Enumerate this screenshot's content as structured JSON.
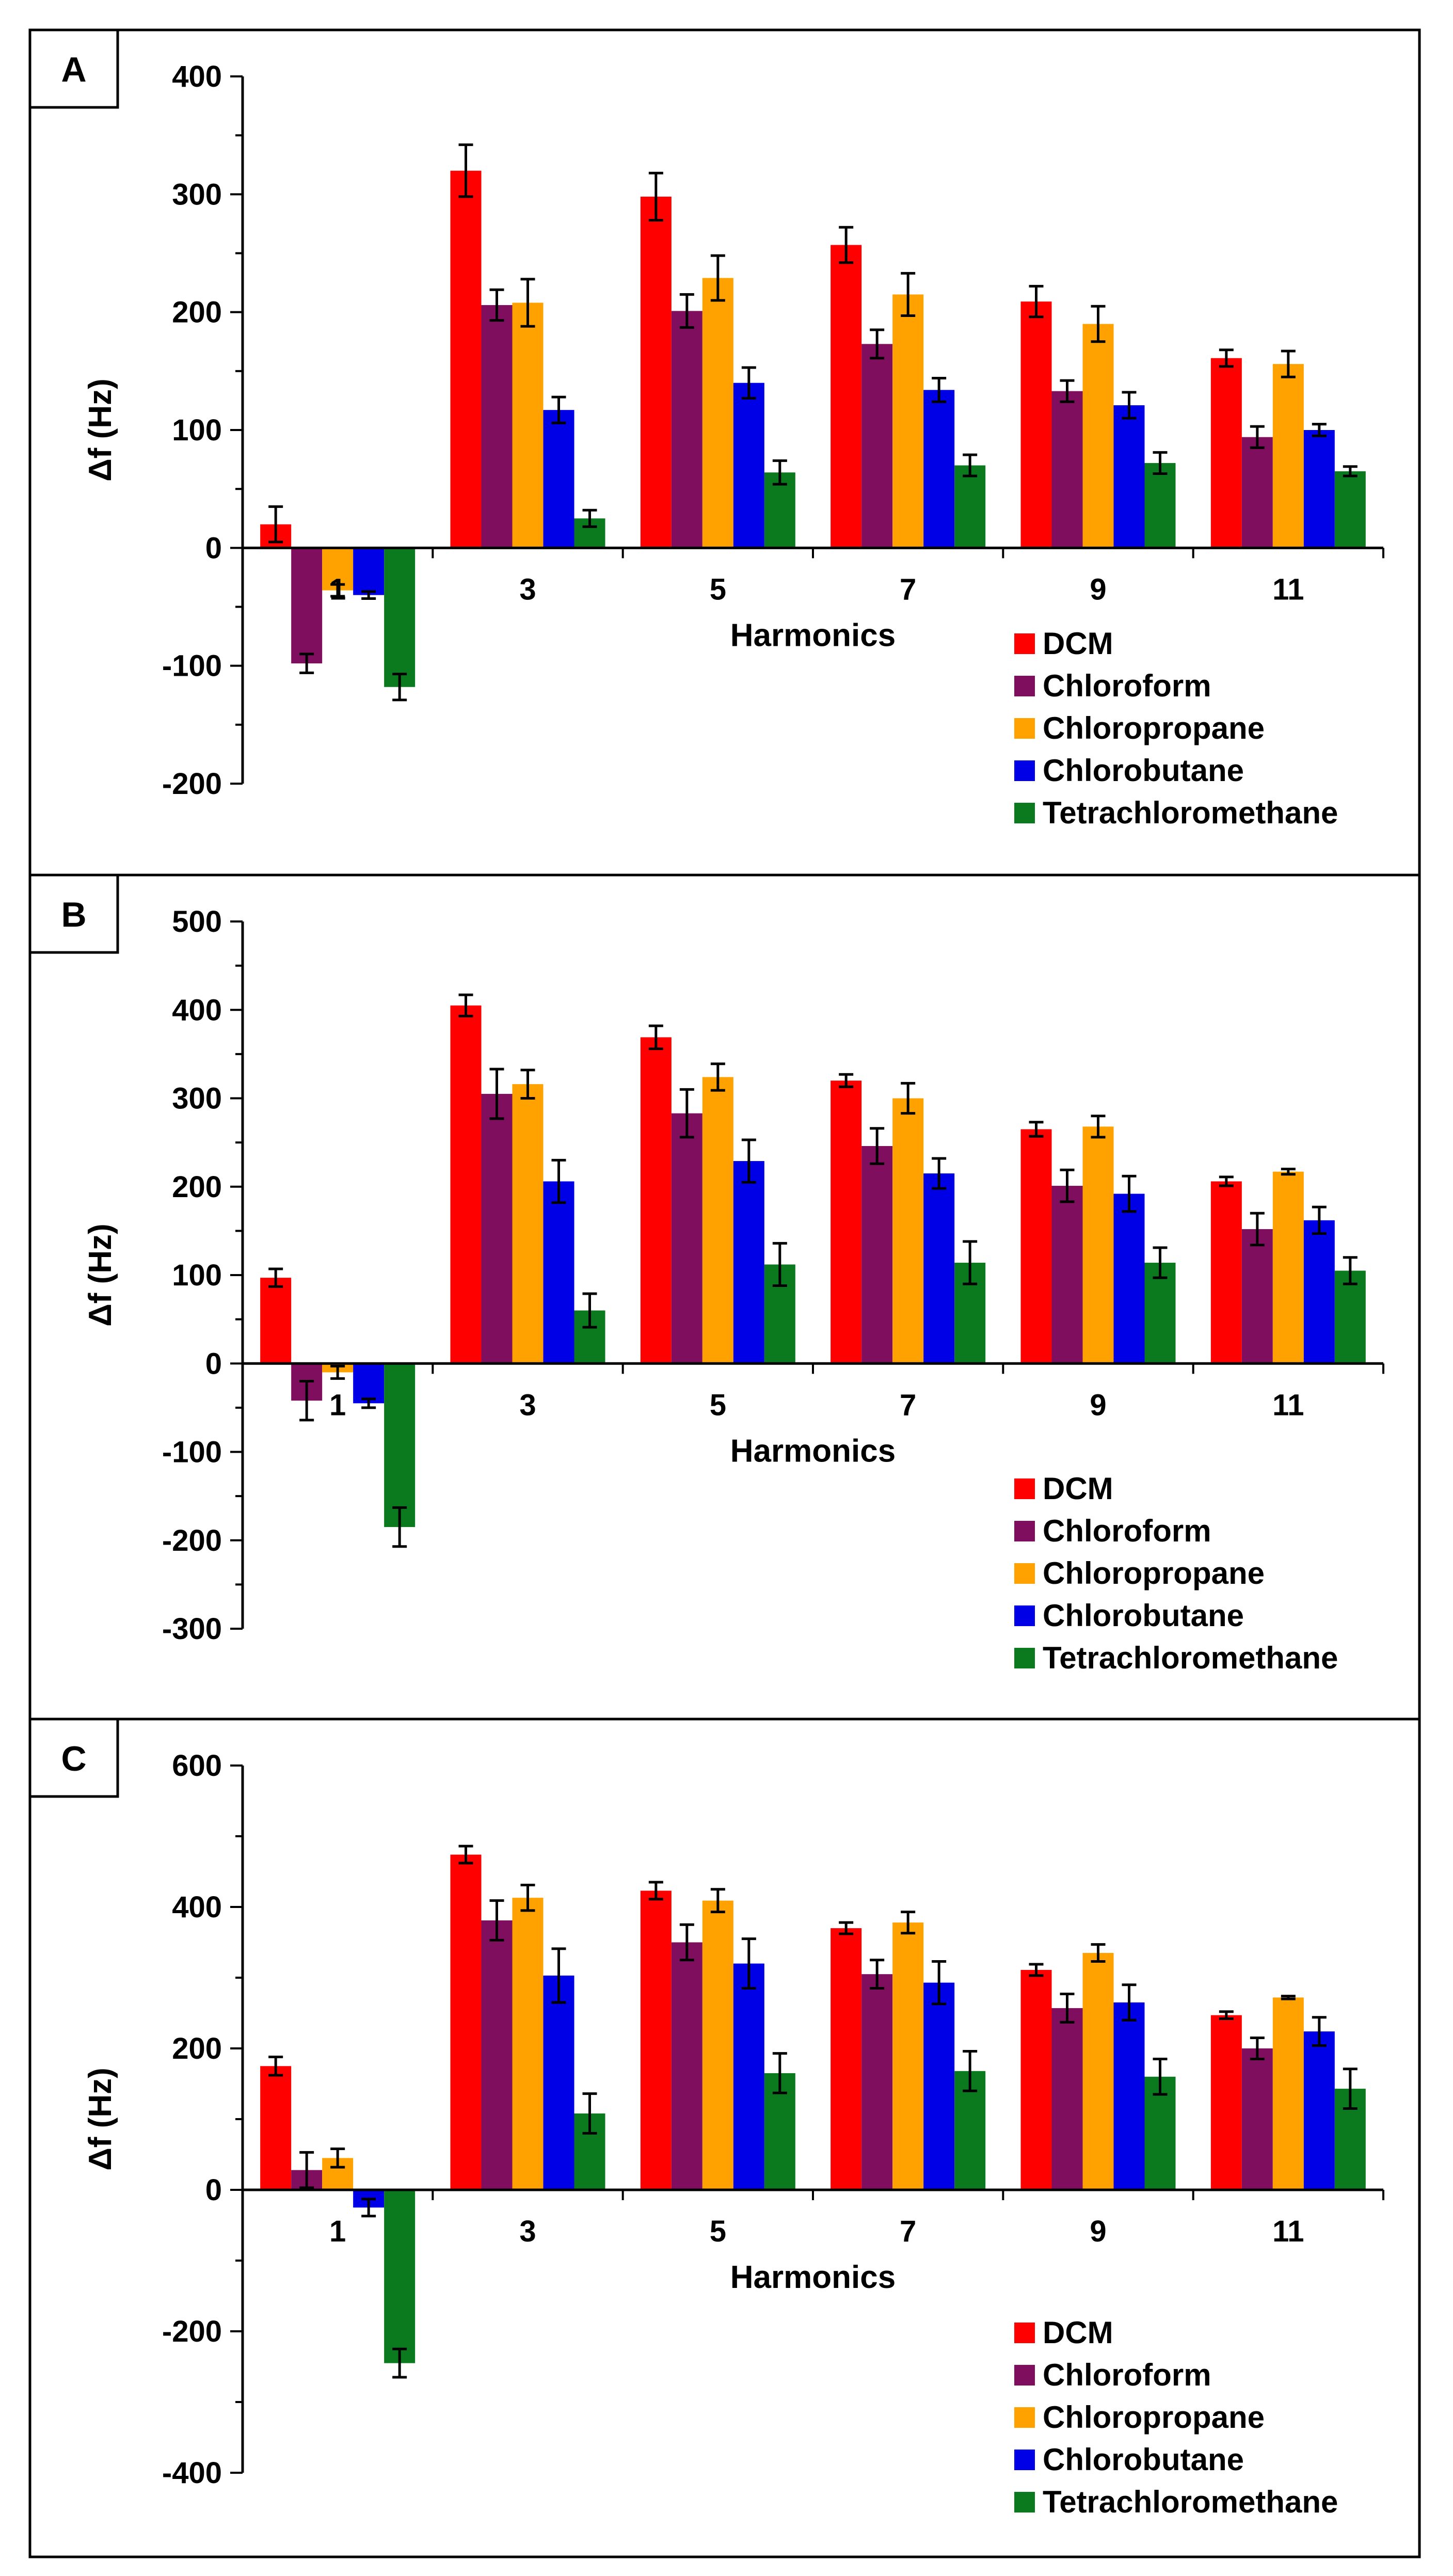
{
  "figure": {
    "panel_count": 3
  },
  "chart_data": [
    {
      "type": "bar",
      "panel_label": "A",
      "xlabel": "Harmonics",
      "ylabel": "Δf (Hz)",
      "ylim": [
        -200,
        400
      ],
      "y_major_step": 100,
      "y_minor_step": 50,
      "yticks": [
        "-200",
        "-100",
        "0",
        "100",
        "200",
        "300",
        "400"
      ],
      "categories": [
        "1",
        "3",
        "5",
        "7",
        "9",
        "11"
      ],
      "legend_position": "lower-right",
      "series": [
        {
          "name": "DCM",
          "color": "#ff0000",
          "values": [
            20,
            320,
            298,
            257,
            209,
            161
          ],
          "errors": [
            15,
            22,
            20,
            15,
            13,
            7
          ]
        },
        {
          "name": "Chloroform",
          "color": "#7f0f5e",
          "values": [
            -98,
            206,
            201,
            173,
            133,
            94
          ],
          "errors": [
            8,
            13,
            14,
            12,
            9,
            9
          ]
        },
        {
          "name": "Chloropropane",
          "color": "#ffa200",
          "values": [
            -36,
            208,
            229,
            215,
            190,
            156
          ],
          "errors": [
            5,
            20,
            19,
            18,
            15,
            11
          ]
        },
        {
          "name": "Chlorobutane",
          "color": "#0000e6",
          "values": [
            -40,
            117,
            140,
            134,
            121,
            100
          ],
          "errors": [
            3,
            11,
            13,
            10,
            11,
            5
          ]
        },
        {
          "name": "Tetrachloromethane",
          "color": "#0b7a1e",
          "values": [
            -118,
            25,
            64,
            70,
            72,
            65
          ],
          "errors": [
            11,
            7,
            10,
            9,
            9,
            4
          ]
        }
      ]
    },
    {
      "type": "bar",
      "panel_label": "B",
      "xlabel": "Harmonics",
      "ylabel": "Δf (Hz)",
      "ylim": [
        -300,
        500
      ],
      "y_major_step": 100,
      "y_minor_step": 50,
      "yticks": [
        "-300",
        "-200",
        "-100",
        "0",
        "100",
        "200",
        "300",
        "400",
        "500"
      ],
      "categories": [
        "1",
        "3",
        "5",
        "7",
        "9",
        "11"
      ],
      "legend_position": "lower-right",
      "series": [
        {
          "name": "DCM",
          "color": "#ff0000",
          "values": [
            97,
            405,
            369,
            320,
            265,
            206
          ],
          "errors": [
            10,
            12,
            13,
            7,
            8,
            5
          ]
        },
        {
          "name": "Chloroform",
          "color": "#7f0f5e",
          "values": [
            -42,
            305,
            283,
            246,
            201,
            152
          ],
          "errors": [
            22,
            28,
            27,
            20,
            18,
            18
          ]
        },
        {
          "name": "Chloropropane",
          "color": "#ffa200",
          "values": [
            -10,
            316,
            324,
            300,
            268,
            217
          ],
          "errors": [
            7,
            16,
            15,
            17,
            12,
            3
          ]
        },
        {
          "name": "Chlorobutane",
          "color": "#0000e6",
          "values": [
            -45,
            206,
            229,
            215,
            192,
            162
          ],
          "errors": [
            5,
            24,
            24,
            17,
            20,
            15
          ]
        },
        {
          "name": "Tetrachloromethane",
          "color": "#0b7a1e",
          "values": [
            -185,
            60,
            112,
            114,
            114,
            105
          ],
          "errors": [
            22,
            19,
            24,
            24,
            17,
            15
          ]
        }
      ]
    },
    {
      "type": "bar",
      "panel_label": "C",
      "xlabel": "Harmonics",
      "ylabel": "Δf (Hz)",
      "ylim": [
        -400,
        600
      ],
      "y_major_step": 200,
      "y_minor_step": 100,
      "yticks": [
        "-400",
        "-200",
        "0",
        "200",
        "400",
        "600"
      ],
      "categories": [
        "1",
        "3",
        "5",
        "7",
        "9",
        "11"
      ],
      "legend_position": "lower-right",
      "series": [
        {
          "name": "DCM",
          "color": "#ff0000",
          "values": [
            175,
            474,
            423,
            370,
            311,
            247
          ],
          "errors": [
            13,
            12,
            12,
            8,
            8,
            5
          ]
        },
        {
          "name": "Chloroform",
          "color": "#7f0f5e",
          "values": [
            28,
            381,
            350,
            305,
            257,
            200
          ],
          "errors": [
            25,
            28,
            25,
            20,
            20,
            15
          ]
        },
        {
          "name": "Chloropropane",
          "color": "#ffa200",
          "values": [
            45,
            413,
            409,
            378,
            335,
            272
          ],
          "errors": [
            13,
            18,
            16,
            15,
            12,
            2
          ]
        },
        {
          "name": "Chlorobutane",
          "color": "#0000e6",
          "values": [
            -25,
            303,
            320,
            293,
            265,
            224
          ],
          "errors": [
            12,
            38,
            35,
            30,
            25,
            20
          ]
        },
        {
          "name": "Tetrachloromethane",
          "color": "#0b7a1e",
          "values": [
            -245,
            108,
            165,
            168,
            160,
            143
          ],
          "errors": [
            20,
            28,
            28,
            28,
            25,
            28
          ]
        }
      ]
    }
  ]
}
